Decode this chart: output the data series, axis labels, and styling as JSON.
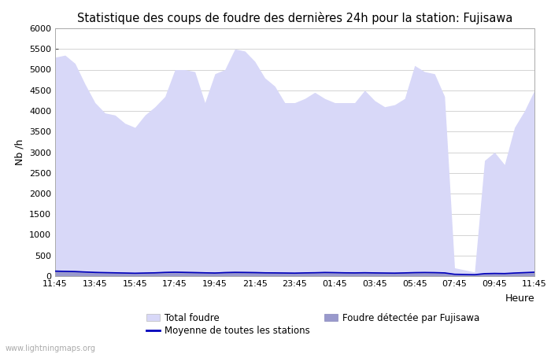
{
  "title": "Statistique des coups de foudre des dernières 24h pour la station: Fujisawa",
  "ylabel": "Nb /h",
  "xlabel": "Heure",
  "watermark": "www.lightningmaps.org",
  "xlim": [
    0,
    24
  ],
  "ylim": [
    0,
    6000
  ],
  "yticks": [
    0,
    500,
    1000,
    1500,
    2000,
    2500,
    3000,
    3500,
    4000,
    4500,
    5000,
    5500,
    6000
  ],
  "xtick_labels": [
    "11:45",
    "13:45",
    "15:45",
    "17:45",
    "19:45",
    "21:45",
    "23:45",
    "01:45",
    "03:45",
    "05:45",
    "07:45",
    "09:45",
    "11:45"
  ],
  "color_total": "#d8d8f8",
  "color_fujisawa": "#9999cc",
  "color_moyenne": "#0000bb",
  "color_background": "#ffffff",
  "color_grid": "#cccccc",
  "legend_total": "Total foudre",
  "legend_moyenne": "Moyenne de toutes les stations",
  "legend_fujisawa": "Foudre détectée par Fujisawa",
  "total_foudre": [
    5300,
    5350,
    5150,
    4650,
    4200,
    3950,
    3900,
    3700,
    3600,
    3900,
    4100,
    4350,
    5000,
    5000,
    4950,
    4200,
    4900,
    5000,
    5500,
    5450,
    5200,
    4800,
    4600,
    4200,
    4200,
    4300,
    4450,
    4300,
    4200,
    4200,
    4200,
    4500,
    4250,
    4100,
    4150,
    4300,
    5100,
    4950,
    4900,
    4350,
    200,
    150,
    100,
    2800,
    3000,
    2700,
    3600,
    4000,
    4500
  ],
  "fujisawa": [
    150,
    140,
    135,
    120,
    110,
    100,
    95,
    90,
    85,
    90,
    100,
    110,
    120,
    115,
    110,
    105,
    100,
    110,
    120,
    115,
    110,
    105,
    100,
    95,
    90,
    95,
    100,
    110,
    105,
    100,
    95,
    100,
    95,
    90,
    90,
    95,
    100,
    105,
    100,
    95,
    50,
    45,
    40,
    75,
    80,
    75,
    90,
    100,
    110
  ],
  "moyenne": [
    120,
    115,
    110,
    100,
    90,
    85,
    80,
    75,
    70,
    75,
    80,
    90,
    95,
    90,
    85,
    80,
    75,
    85,
    90,
    88,
    85,
    80,
    78,
    75,
    72,
    78,
    82,
    88,
    85,
    80,
    78,
    82,
    78,
    75,
    72,
    78,
    85,
    88,
    85,
    78,
    45,
    40,
    35,
    60,
    65,
    62,
    75,
    85,
    95
  ]
}
